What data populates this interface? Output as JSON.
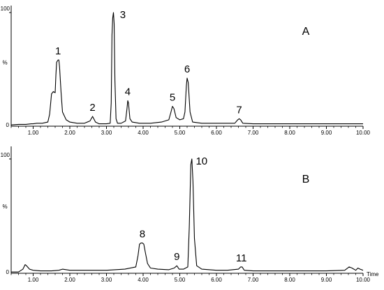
{
  "chart_data": [
    {
      "type": "line",
      "panel_label": "A",
      "xlabel": "",
      "ylabel": "%",
      "xlim": [
        0.4,
        10.0
      ],
      "ylim": [
        0,
        100
      ],
      "x_ticks": [
        "1.00",
        "2.00",
        "3.00",
        "4.00",
        "5.00",
        "6.00",
        "7.00",
        "8.00",
        "9.00",
        "10.00"
      ],
      "y_ticks": [
        "0",
        "100"
      ],
      "grid": false,
      "peaks": [
        {
          "label": "1",
          "x": 1.68,
          "y": 58
        },
        {
          "label": "2",
          "x": 2.62,
          "y": 8
        },
        {
          "label": "3",
          "x": 3.18,
          "y": 100
        },
        {
          "label": "4",
          "x": 3.58,
          "y": 22
        },
        {
          "label": "5",
          "x": 4.8,
          "y": 17
        },
        {
          "label": "6",
          "x": 5.2,
          "y": 42
        },
        {
          "label": "7",
          "x": 6.62,
          "y": 6
        }
      ],
      "series": [
        {
          "x": [
            0.4,
            0.6,
            0.8,
            0.95,
            1.0,
            1.1,
            1.25,
            1.4,
            1.45,
            1.5,
            1.55,
            1.6,
            1.62,
            1.64,
            1.66,
            1.68,
            1.7,
            1.72,
            1.76,
            1.8,
            1.9,
            2.0,
            2.2,
            2.4,
            2.55,
            2.62,
            2.7,
            2.8,
            3.0,
            3.1,
            3.13,
            3.15,
            3.17,
            3.19,
            3.21,
            3.23,
            3.26,
            3.3,
            3.4,
            3.52,
            3.56,
            3.58,
            3.6,
            3.64,
            3.7,
            3.9,
            4.2,
            4.5,
            4.7,
            4.76,
            4.8,
            4.84,
            4.9,
            5.0,
            5.1,
            5.14,
            5.18,
            5.2,
            5.23,
            5.28,
            5.35,
            5.6,
            6.0,
            6.5,
            6.58,
            6.62,
            6.66,
            6.72,
            7.0,
            8.0,
            9.0,
            10.0
          ],
          "y": [
            0.5,
            1,
            1,
            1.5,
            1.5,
            2,
            2,
            3,
            10,
            28,
            30,
            29,
            45,
            56,
            57,
            58,
            58,
            52,
            30,
            12,
            5,
            3,
            2,
            2,
            4,
            8,
            3,
            1.5,
            1.5,
            2,
            20,
            80,
            95,
            100,
            90,
            40,
            6,
            2,
            2,
            4,
            15,
            22,
            20,
            6,
            3,
            2,
            2,
            3,
            5,
            12,
            17,
            15,
            7,
            5,
            6,
            12,
            35,
            42,
            38,
            12,
            3,
            2,
            2,
            2,
            5,
            6,
            5,
            2,
            1.5,
            1.5,
            1.5,
            1.5
          ]
        }
      ]
    },
    {
      "type": "line",
      "panel_label": "B",
      "xlabel": "Time",
      "ylabel": "%",
      "xlim": [
        0.4,
        10.0
      ],
      "ylim": [
        0,
        100
      ],
      "x_ticks": [
        "1.00",
        "2.00",
        "3.00",
        "4.00",
        "5.00",
        "6.00",
        "7.00",
        "8.00",
        "9.00",
        "10.00"
      ],
      "y_ticks": [
        "0",
        "100"
      ],
      "grid": false,
      "peaks": [
        {
          "label": "8",
          "x": 3.98,
          "y": 26
        },
        {
          "label": "9",
          "x": 4.92,
          "y": 6
        },
        {
          "label": "10",
          "x": 5.33,
          "y": 100
        },
        {
          "label": "11",
          "x": 6.68,
          "y": 5
        }
      ],
      "series": [
        {
          "x": [
            0.4,
            0.6,
            0.72,
            0.78,
            0.82,
            0.9,
            1.0,
            1.2,
            1.5,
            1.7,
            1.8,
            2.0,
            2.5,
            3.0,
            3.5,
            3.8,
            3.86,
            3.9,
            3.94,
            3.98,
            4.02,
            4.06,
            4.12,
            4.2,
            4.4,
            4.7,
            4.85,
            4.92,
            4.98,
            5.1,
            5.22,
            5.26,
            5.3,
            5.33,
            5.36,
            5.4,
            5.46,
            5.6,
            6.0,
            6.3,
            6.6,
            6.66,
            6.7,
            6.76,
            7.0,
            8.0,
            9.0,
            9.5,
            9.62,
            9.7,
            9.8,
            9.86,
            9.92,
            10.0
          ],
          "y": [
            0.5,
            0.5,
            3,
            7,
            6,
            3,
            2,
            1.5,
            1.5,
            2,
            3,
            2,
            2,
            2,
            3,
            5,
            15,
            25,
            26,
            26,
            25,
            18,
            8,
            4,
            3,
            2.5,
            4,
            6,
            3,
            3,
            5,
            40,
            95,
            100,
            80,
            30,
            6,
            3,
            2,
            2,
            3,
            5,
            5,
            2,
            1.5,
            1.5,
            1.5,
            2,
            5,
            4,
            2,
            4,
            3,
            2
          ]
        }
      ]
    }
  ]
}
